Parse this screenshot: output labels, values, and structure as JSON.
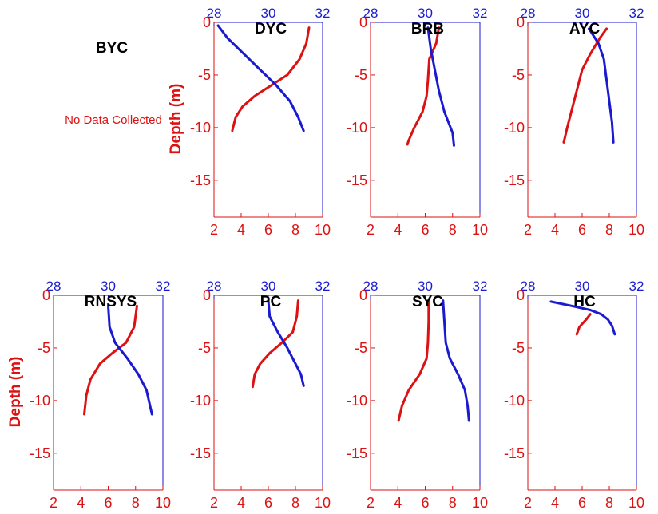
{
  "colors": {
    "red_series": "#dd1111",
    "blue_series": "#1a1ad0",
    "bottom_axis": "#dd1111",
    "top_axis": "#1a1ad0",
    "left_axis": "#dd1111"
  },
  "standalone": {
    "title": "BYC",
    "note": "No Data Collected"
  },
  "shared_axes": {
    "bottom_ticks": [
      "2",
      "4",
      "6",
      "8",
      "10"
    ],
    "top_ticks": [
      "28",
      "30",
      "32"
    ],
    "left_ticks": [
      "0",
      "-5",
      "-10",
      "-15"
    ],
    "ylabel": "Depth (m)"
  },
  "chart_data": [
    {
      "type": "line",
      "title": "DYC",
      "ylabel": "Depth (m)",
      "xlim_bottom": [
        2,
        10
      ],
      "xlim_top": [
        28,
        32
      ],
      "ylim": [
        -18.5,
        0
      ],
      "series": [
        {
          "axis": "bottom",
          "color": "red",
          "points": [
            [
              9.0,
              -0.5
            ],
            [
              8.8,
              -2.0
            ],
            [
              8.3,
              -3.5
            ],
            [
              7.4,
              -5.0
            ],
            [
              6.2,
              -6.0
            ],
            [
              5.0,
              -7.0
            ],
            [
              4.1,
              -8.0
            ],
            [
              3.6,
              -9.0
            ],
            [
              3.4,
              -10.0
            ],
            [
              3.35,
              -10.3
            ]
          ]
        },
        {
          "axis": "top",
          "color": "blue",
          "points": [
            [
              28.15,
              -0.3
            ],
            [
              28.5,
              -1.5
            ],
            [
              29.1,
              -3.0
            ],
            [
              29.7,
              -4.5
            ],
            [
              30.3,
              -6.0
            ],
            [
              30.8,
              -7.5
            ],
            [
              31.1,
              -9.0
            ],
            [
              31.3,
              -10.3
            ]
          ]
        }
      ]
    },
    {
      "type": "line",
      "title": "BRB",
      "ylabel": "",
      "xlim_bottom": [
        2,
        10
      ],
      "xlim_top": [
        28,
        32
      ],
      "ylim": [
        -18.5,
        0
      ],
      "series": [
        {
          "axis": "bottom",
          "color": "red",
          "points": [
            [
              7.0,
              -0.5
            ],
            [
              6.8,
              -2.0
            ],
            [
              6.3,
              -3.5
            ],
            [
              6.2,
              -5.5
            ],
            [
              6.1,
              -7.0
            ],
            [
              5.8,
              -8.5
            ],
            [
              5.2,
              -10.0
            ],
            [
              4.8,
              -11.2
            ],
            [
              4.7,
              -11.6
            ]
          ]
        },
        {
          "axis": "top",
          "color": "blue",
          "points": [
            [
              30.1,
              -0.5
            ],
            [
              30.2,
              -2.5
            ],
            [
              30.35,
              -4.5
            ],
            [
              30.5,
              -6.5
            ],
            [
              30.7,
              -8.5
            ],
            [
              31.0,
              -10.5
            ],
            [
              31.05,
              -11.7
            ]
          ]
        }
      ]
    },
    {
      "type": "line",
      "title": "AYC",
      "ylabel": "",
      "xlim_bottom": [
        2,
        10
      ],
      "xlim_top": [
        28,
        32
      ],
      "ylim": [
        -18.5,
        0
      ],
      "series": [
        {
          "axis": "bottom",
          "color": "red",
          "points": [
            [
              7.8,
              -0.6
            ],
            [
              7.3,
              -1.5
            ],
            [
              6.6,
              -3.0
            ],
            [
              6.0,
              -4.5
            ],
            [
              5.6,
              -6.5
            ],
            [
              5.2,
              -8.5
            ],
            [
              4.9,
              -10.0
            ],
            [
              4.65,
              -11.4
            ]
          ]
        },
        {
          "axis": "top",
          "color": "blue",
          "points": [
            [
              30.25,
              -0.6
            ],
            [
              30.6,
              -2.0
            ],
            [
              30.8,
              -3.5
            ],
            [
              30.9,
              -5.5
            ],
            [
              31.0,
              -7.5
            ],
            [
              31.1,
              -9.5
            ],
            [
              31.15,
              -11.4
            ]
          ]
        }
      ]
    },
    {
      "type": "line",
      "title": "RNSYS",
      "ylabel": "Depth (m)",
      "xlim_bottom": [
        2,
        10
      ],
      "xlim_top": [
        28,
        32
      ],
      "ylim": [
        -18.5,
        0
      ],
      "series": [
        {
          "axis": "bottom",
          "color": "red",
          "points": [
            [
              8.1,
              -1.0
            ],
            [
              7.9,
              -3.0
            ],
            [
              7.3,
              -4.5
            ],
            [
              6.3,
              -5.5
            ],
            [
              5.4,
              -6.5
            ],
            [
              4.7,
              -8.0
            ],
            [
              4.4,
              -9.5
            ],
            [
              4.25,
              -11.3
            ]
          ]
        },
        {
          "axis": "top",
          "color": "blue",
          "points": [
            [
              30.0,
              -1.0
            ],
            [
              30.05,
              -3.0
            ],
            [
              30.25,
              -4.5
            ],
            [
              30.7,
              -6.0
            ],
            [
              31.1,
              -7.5
            ],
            [
              31.4,
              -9.0
            ],
            [
              31.6,
              -11.3
            ]
          ]
        }
      ]
    },
    {
      "type": "line",
      "title": "PC",
      "ylabel": "",
      "xlim_bottom": [
        2,
        10
      ],
      "xlim_top": [
        28,
        32
      ],
      "ylim": [
        -18.5,
        0
      ],
      "series": [
        {
          "axis": "bottom",
          "color": "red",
          "points": [
            [
              8.2,
              -0.5
            ],
            [
              8.1,
              -2.0
            ],
            [
              7.8,
              -3.5
            ],
            [
              7.0,
              -4.5
            ],
            [
              6.1,
              -5.5
            ],
            [
              5.4,
              -6.5
            ],
            [
              5.0,
              -7.5
            ],
            [
              4.85,
              -8.7
            ]
          ]
        },
        {
          "axis": "top",
          "color": "blue",
          "points": [
            [
              30.0,
              -0.5
            ],
            [
              30.05,
              -2.0
            ],
            [
              30.35,
              -3.5
            ],
            [
              30.7,
              -5.0
            ],
            [
              31.0,
              -6.5
            ],
            [
              31.2,
              -7.5
            ],
            [
              31.3,
              -8.6
            ]
          ]
        }
      ]
    },
    {
      "type": "line",
      "title": "SYC",
      "ylabel": "",
      "xlim_bottom": [
        2,
        10
      ],
      "xlim_top": [
        28,
        32
      ],
      "ylim": [
        -18.5,
        0
      ],
      "series": [
        {
          "axis": "bottom",
          "color": "red",
          "points": [
            [
              6.25,
              -0.5
            ],
            [
              6.25,
              -2.5
            ],
            [
              6.2,
              -4.5
            ],
            [
              6.1,
              -6.0
            ],
            [
              5.6,
              -7.5
            ],
            [
              4.8,
              -9.0
            ],
            [
              4.3,
              -10.5
            ],
            [
              4.05,
              -11.9
            ]
          ]
        },
        {
          "axis": "top",
          "color": "blue",
          "points": [
            [
              30.65,
              -0.5
            ],
            [
              30.7,
              -2.5
            ],
            [
              30.75,
              -4.5
            ],
            [
              30.9,
              -6.0
            ],
            [
              31.2,
              -7.5
            ],
            [
              31.45,
              -9.0
            ],
            [
              31.55,
              -10.5
            ],
            [
              31.6,
              -11.9
            ]
          ]
        }
      ]
    },
    {
      "type": "line",
      "title": "HC",
      "ylabel": "",
      "xlim_bottom": [
        2,
        10
      ],
      "xlim_top": [
        28,
        32
      ],
      "ylim": [
        -18.5,
        0
      ],
      "series": [
        {
          "axis": "bottom",
          "color": "red",
          "points": [
            [
              6.6,
              -1.8
            ],
            [
              6.3,
              -2.3
            ],
            [
              5.8,
              -3.0
            ],
            [
              5.6,
              -3.7
            ]
          ]
        },
        {
          "axis": "top",
          "color": "blue",
          "points": [
            [
              28.85,
              -0.6
            ],
            [
              29.6,
              -1.0
            ],
            [
              30.3,
              -1.4
            ],
            [
              30.7,
              -1.8
            ],
            [
              30.95,
              -2.3
            ],
            [
              31.1,
              -2.9
            ],
            [
              31.2,
              -3.7
            ]
          ]
        }
      ]
    }
  ]
}
